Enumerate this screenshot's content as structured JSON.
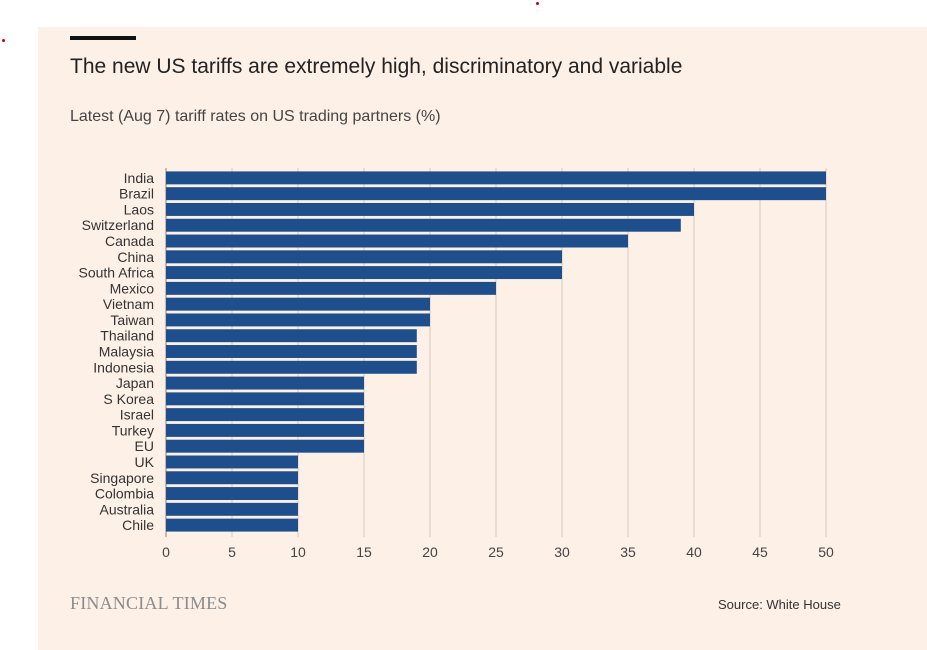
{
  "header": {
    "title": "The new US tariffs are extremely high, discriminatory and variable",
    "subtitle": "Latest (Aug 7) tariff rates on US trading partners (%)"
  },
  "footer": {
    "brand": "FINANCIAL TIMES",
    "source": "Source: White House"
  },
  "colors": {
    "bar": "#1f4e8c",
    "background": "#fdf0e6",
    "grid": "#d4c9c0"
  },
  "chart_data": {
    "type": "bar",
    "orientation": "horizontal",
    "categories": [
      "India",
      "Brazil",
      "Laos",
      "Switzerland",
      "Canada",
      "China",
      "South Africa",
      "Mexico",
      "Vietnam",
      "Taiwan",
      "Thailand",
      "Malaysia",
      "Indonesia",
      "Japan",
      "S Korea",
      "Israel",
      "Turkey",
      "EU",
      "UK",
      "Singapore",
      "Colombia",
      "Australia",
      "Chile"
    ],
    "values": [
      50,
      50,
      40,
      39,
      35,
      30,
      30,
      25,
      20,
      20,
      19,
      19,
      19,
      15,
      15,
      15,
      15,
      15,
      10,
      10,
      10,
      10,
      10
    ],
    "xticks": [
      "0",
      "5",
      "10",
      "15",
      "20",
      "25",
      "30",
      "35",
      "40",
      "45",
      "50"
    ],
    "xlim": [
      0,
      50
    ],
    "grid": true
  }
}
